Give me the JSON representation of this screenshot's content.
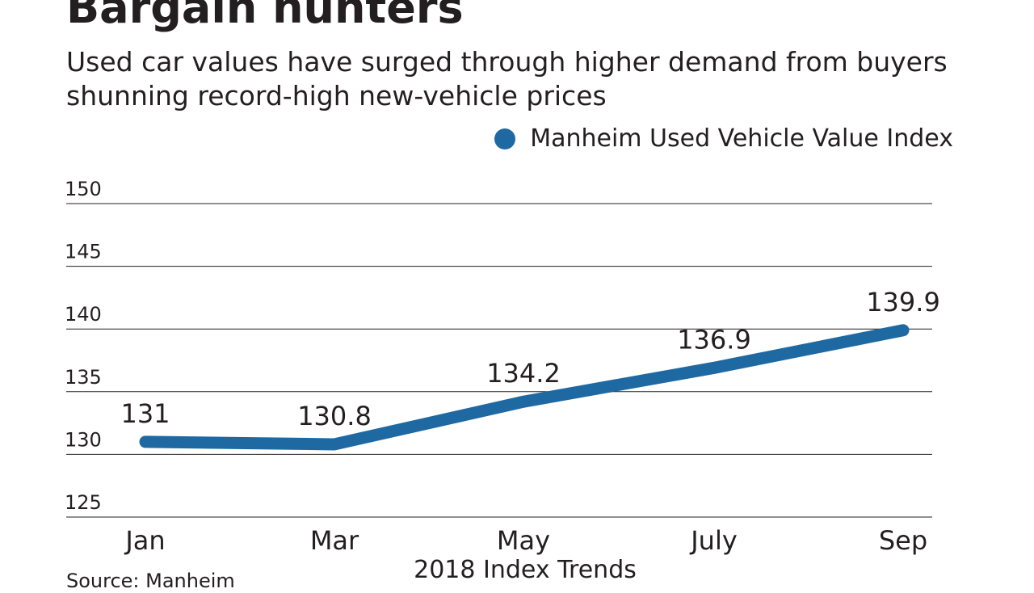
{
  "colors": {
    "series": "#1f69a3",
    "grid": "#231f20",
    "text": "#231f20"
  },
  "chart_data": {
    "type": "line",
    "title": "Bargain hunters",
    "subtitle": "Used car values have surged through higher demand from buyers shunning record-high new-vehicle prices",
    "categories": [
      "Jan",
      "Mar",
      "May",
      "July",
      "Sep"
    ],
    "series": [
      {
        "name": "Manheim Used Vehicle Value Index",
        "values": [
          131,
          130.8,
          134.2,
          136.9,
          139.9
        ],
        "labels": [
          "131",
          "130.8",
          "134.2",
          "136.9",
          "139.9"
        ]
      }
    ],
    "xlabel": "2018 Index Trends",
    "ylabel": "",
    "ylim": [
      125,
      150
    ],
    "yticks": [
      125,
      130,
      135,
      140,
      145,
      150
    ],
    "grid": true,
    "legend_position": "top-right",
    "source": "Source: Manheim"
  }
}
